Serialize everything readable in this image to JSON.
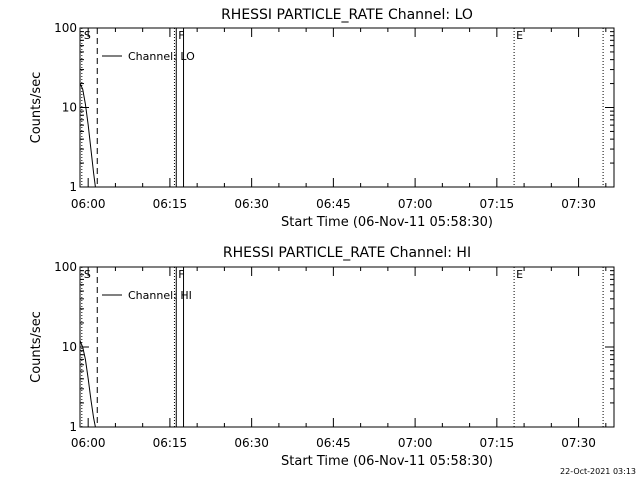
{
  "footer": {
    "timestamp": "22-Oct-2021 03:13"
  },
  "chart_data": [
    {
      "type": "line",
      "title": "RHESSI PARTICLE_RATE Channel: LO",
      "xlabel": "Start Time (06-Nov-11 05:58:30)",
      "ylabel": "Counts/sec",
      "yscale": "log",
      "ylim": [
        1,
        100
      ],
      "xlim": [
        "05:58:30",
        "07:36:30"
      ],
      "ytick_labels": [
        "1",
        "10",
        "100"
      ],
      "xtick_labels": [
        "06:00",
        "06:15",
        "06:30",
        "06:45",
        "07:00",
        "07:15",
        "07:30"
      ],
      "legend": {
        "placement": "top-left",
        "entries": [
          "Channel: LO"
        ]
      },
      "markers": [
        {
          "label": "S",
          "time": "05:58:50",
          "style": "dotted"
        },
        {
          "label": "",
          "time": "06:01:40",
          "style": "dashed"
        },
        {
          "label": "",
          "time": "06:15:50",
          "style": "dotted"
        },
        {
          "label": "F",
          "time": "06:16:10",
          "style": "solid"
        },
        {
          "label": "",
          "time": "06:17:30",
          "style": "solid"
        },
        {
          "label": "E",
          "time": "07:18:10",
          "style": "dotted"
        },
        {
          "label": "",
          "time": "07:34:30",
          "style": "dotted"
        }
      ],
      "series": [
        {
          "name": "Channel: LO",
          "x": [
            "05:58:30",
            "05:59:00",
            "05:59:30",
            "06:00:00",
            "06:00:30",
            "06:01:00",
            "06:01:20"
          ],
          "y": [
            20,
            17,
            11,
            6,
            3,
            1.5,
            1
          ]
        }
      ]
    },
    {
      "type": "line",
      "title": "RHESSI PARTICLE_RATE Channel: HI",
      "xlabel": "Start Time (06-Nov-11 05:58:30)",
      "ylabel": "Counts/sec",
      "yscale": "log",
      "ylim": [
        1,
        100
      ],
      "xlim": [
        "05:58:30",
        "07:36:30"
      ],
      "ytick_labels": [
        "1",
        "10",
        "100"
      ],
      "xtick_labels": [
        "06:00",
        "06:15",
        "06:30",
        "06:45",
        "07:00",
        "07:15",
        "07:30"
      ],
      "legend": {
        "placement": "top-left",
        "entries": [
          "Channel: HI"
        ]
      },
      "markers": [
        {
          "label": "S",
          "time": "05:58:50",
          "style": "dotted"
        },
        {
          "label": "",
          "time": "06:01:40",
          "style": "dashed"
        },
        {
          "label": "",
          "time": "06:15:50",
          "style": "dotted"
        },
        {
          "label": "F",
          "time": "06:16:10",
          "style": "solid"
        },
        {
          "label": "",
          "time": "06:17:30",
          "style": "solid"
        },
        {
          "label": "E",
          "time": "07:18:10",
          "style": "dotted"
        },
        {
          "label": "",
          "time": "07:34:30",
          "style": "dotted"
        }
      ],
      "series": [
        {
          "name": "Channel: HI",
          "x": [
            "05:58:30",
            "05:59:00",
            "05:59:30",
            "06:00:00",
            "06:00:30",
            "06:01:00",
            "06:01:20"
          ],
          "y": [
            12,
            10,
            7,
            4,
            2.2,
            1.3,
            1
          ]
        }
      ]
    }
  ]
}
